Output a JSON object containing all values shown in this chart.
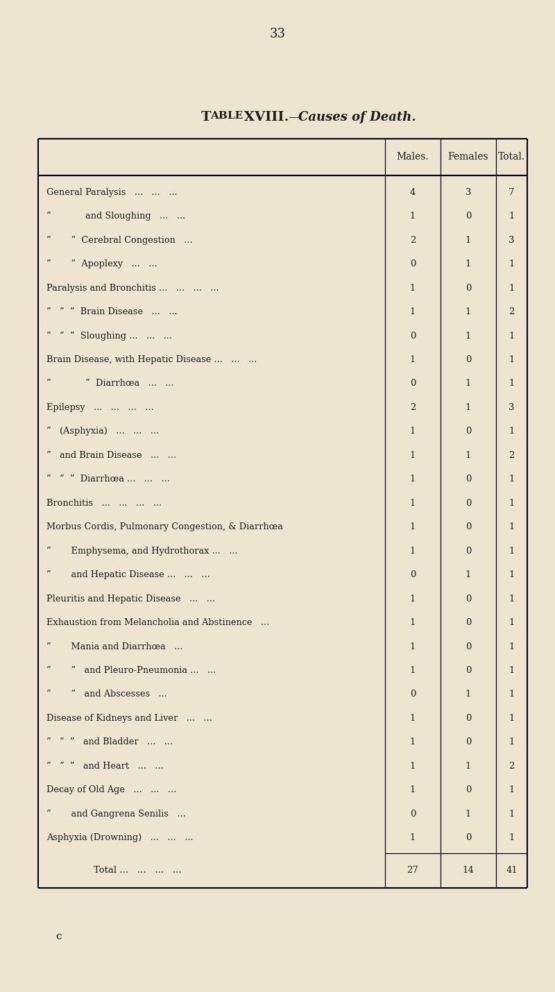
{
  "page_number": "33",
  "title_roman": "Table XVIII.",
  "title_italic": "—Causes of Death.",
  "bg_color": "#ede5d0",
  "col_headers": [
    "Males.",
    "Females",
    "Total."
  ],
  "rows": [
    {
      "label": "General Paralysis",
      "prefix": "",
      "suffix": "   ...   ...   ...",
      "males": 4,
      "females": 3,
      "total": 7
    },
    {
      "label": "and Sloughing",
      "prefix": "”            ",
      "suffix": "   ...   ...",
      "males": 1,
      "females": 0,
      "total": 1
    },
    {
      "label": "”  Cerebral Congestion",
      "prefix": "”       ",
      "suffix": "   ...",
      "males": 2,
      "females": 1,
      "total": 3
    },
    {
      "label": "”  Apoplexy",
      "prefix": "”       ",
      "suffix": "   ...   ...",
      "males": 0,
      "females": 1,
      "total": 1
    },
    {
      "label": "Paralysis and Bronchitis ...",
      "prefix": "",
      "suffix": "   ...   ...   ...",
      "males": 1,
      "females": 0,
      "total": 1
    },
    {
      "label": "”  Brain Disease",
      "prefix": "”   ”  ",
      "suffix": "   ...   ...",
      "males": 1,
      "females": 1,
      "total": 2
    },
    {
      "label": "”  Sloughing ...",
      "prefix": "”   ”  ",
      "suffix": "   ...   ...",
      "males": 0,
      "females": 1,
      "total": 1
    },
    {
      "label": "Brain Disease, with Hepatic Disease ...",
      "prefix": "",
      "suffix": "   ...   ...",
      "males": 1,
      "females": 0,
      "total": 1
    },
    {
      "label": "”  Diarrhœa",
      "prefix": "”            ",
      "suffix": "   ...   ...",
      "males": 0,
      "females": 1,
      "total": 1
    },
    {
      "label": "Epilepsy",
      "prefix": "",
      "suffix": "   ...   ...   ...   ...",
      "males": 2,
      "females": 1,
      "total": 3
    },
    {
      "label": "(Asphyxia)",
      "prefix": "”   ",
      "suffix": "   ...   ...   ...",
      "males": 1,
      "females": 0,
      "total": 1
    },
    {
      "label": "and Brain Disease",
      "prefix": "”   ",
      "suffix": "   ...   ...",
      "males": 1,
      "females": 1,
      "total": 2
    },
    {
      "label": "”  Diarrhœa ...",
      "prefix": "”   ”  ",
      "suffix": "   ...   ...",
      "males": 1,
      "females": 0,
      "total": 1
    },
    {
      "label": "Bronchitis",
      "prefix": "",
      "suffix": "   ...   ...   ...   ...",
      "males": 1,
      "females": 0,
      "total": 1
    },
    {
      "label": "Morbus Cordis, Pulmonary Congestion, & Diarrhœa",
      "prefix": "",
      "suffix": "",
      "males": 1,
      "females": 0,
      "total": 1
    },
    {
      "label": "Emphysema, and Hydrothorax ...",
      "prefix": "”       ",
      "suffix": "   ...",
      "males": 1,
      "females": 0,
      "total": 1
    },
    {
      "label": "and Hepatic Disease ...",
      "prefix": "”       ",
      "suffix": "   ...   ...",
      "males": 0,
      "females": 1,
      "total": 1
    },
    {
      "label": "Pleuritis and Hepatic Disease",
      "prefix": "",
      "suffix": "   ...   ...",
      "males": 1,
      "females": 0,
      "total": 1
    },
    {
      "label": "Exhaustion from Melancholia and Abstinence",
      "prefix": "",
      "suffix": "   ...",
      "males": 1,
      "females": 0,
      "total": 1
    },
    {
      "label": "Mania and Diarrhœa",
      "prefix": "”       ",
      "suffix": "   ...",
      "males": 1,
      "females": 0,
      "total": 1
    },
    {
      "label": "”   and Pleuro-Pneumonia ...",
      "prefix": "”       ",
      "suffix": "   ...",
      "males": 1,
      "females": 0,
      "total": 1
    },
    {
      "label": "”   and Abscesses",
      "prefix": "”       ",
      "suffix": "   ...",
      "males": 0,
      "females": 1,
      "total": 1
    },
    {
      "label": "Disease of Kidneys and Liver",
      "prefix": "",
      "suffix": "   ...   ...",
      "males": 1,
      "females": 0,
      "total": 1
    },
    {
      "label": "”   and Bladder",
      "prefix": "”   ”  ",
      "suffix": "   ...   ...",
      "males": 1,
      "females": 0,
      "total": 1
    },
    {
      "label": "”   and Heart",
      "prefix": "”   ”  ",
      "suffix": "   ...   ...",
      "males": 1,
      "females": 1,
      "total": 2
    },
    {
      "label": "Decay of Old Age",
      "prefix": "",
      "suffix": "   ...   ...   ...",
      "males": 1,
      "females": 0,
      "total": 1
    },
    {
      "label": "and Gangrena Senilis",
      "prefix": "”       ",
      "suffix": "   ...",
      "males": 0,
      "females": 1,
      "total": 1
    },
    {
      "label": "Asphyxia (Drowning)",
      "prefix": "",
      "suffix": "   ...   ...   ...",
      "males": 1,
      "females": 0,
      "total": 1
    }
  ],
  "total_row": {
    "label": "Total ...",
    "males": 27,
    "females": 14,
    "total": 41
  },
  "footer": "c",
  "text_color": "#1c1c1c"
}
